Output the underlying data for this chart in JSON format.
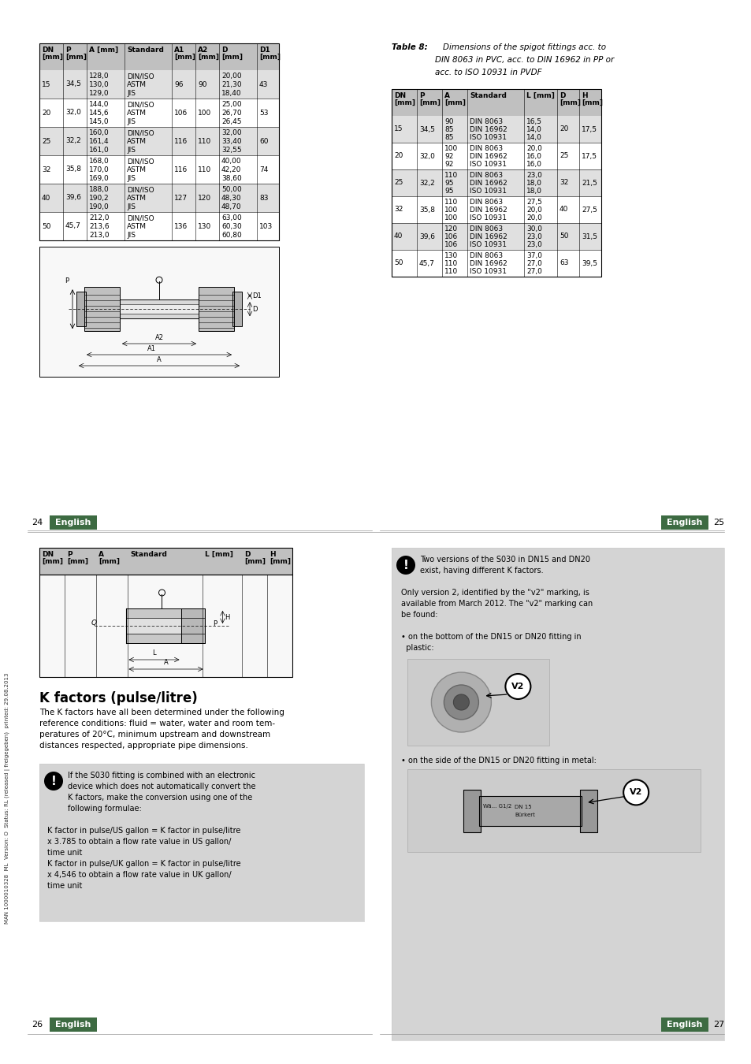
{
  "bg_color": "#ffffff",
  "header_gray": "#c0c0c0",
  "light_gray": "#e0e0e0",
  "footer_green": "#3d6b42",
  "note_bg": "#d4d4d4",
  "sidebar_text": "MAN 1000010328  ML  Version: O  Status: RL (released | freigegeben)  printed: 29.08.2013",
  "table1_headers_row1": [
    "DN",
    "P",
    "A [mm]",
    "Standard",
    "A1",
    "A2",
    "D",
    "D1"
  ],
  "table1_headers_row2": [
    "[mm]",
    "[mm]",
    "",
    "",
    "[mm]",
    "[mm]",
    "[mm]",
    "[mm]"
  ],
  "table1_rows": [
    [
      "15",
      "34,5",
      "128,0\n130,0\n129,0",
      "DIN/ISO\nASTM\nJIS",
      "96",
      "90",
      "20,00\n21,30\n18,40",
      "43"
    ],
    [
      "20",
      "32,0",
      "144,0\n145,6\n145,0",
      "DIN/ISO\nASTM\nJIS",
      "106",
      "100",
      "25,00\n26,70\n26,45",
      "53"
    ],
    [
      "25",
      "32,2",
      "160,0\n161,4\n161,0",
      "DIN/ISO\nASTM\nJIS",
      "116",
      "110",
      "32,00\n33,40\n32,55",
      "60"
    ],
    [
      "32",
      "35,8",
      "168,0\n170,0\n169,0",
      "DIN/ISO\nASTM\nJIS",
      "116",
      "110",
      "40,00\n42,20\n38,60",
      "74"
    ],
    [
      "40",
      "39,6",
      "188,0\n190,2\n190,0",
      "DIN/ISO\nASTM\nJIS",
      "127",
      "120",
      "50,00\n48,30\n48,70",
      "83"
    ],
    [
      "50",
      "45,7",
      "212,0\n213,6\n213,0",
      "DIN/ISO\nASTM\nJIS",
      "136",
      "130",
      "63,00\n60,30\n60,80",
      "103"
    ]
  ],
  "table1_col_widths": [
    30,
    30,
    48,
    60,
    30,
    30,
    48,
    28
  ],
  "table2_caption_bold": "Table 8:",
  "table2_caption_rest": [
    "Dimensions of the spigot fittings acc. to",
    "DIN 8063 in PVC, acc. to DIN 16962 in PP or",
    "acc. to ISO 10931 in PVDF"
  ],
  "table2_headers_row1": [
    "DN",
    "P",
    "A",
    "Standard",
    "L [mm]",
    "D",
    "H"
  ],
  "table2_headers_row2": [
    "[mm]",
    "[mm]",
    "[mm]",
    "",
    "",
    "[mm]",
    "[mm]"
  ],
  "table2_rows": [
    [
      "15",
      "34,5",
      "90\n85\n85",
      "DIN 8063\nDIN 16962\nISO 10931",
      "16,5\n14,0\n14,0",
      "20",
      "17,5"
    ],
    [
      "20",
      "32,0",
      "100\n92\n92",
      "DIN 8063\nDIN 16962\nISO 10931",
      "20,0\n16,0\n16,0",
      "25",
      "17,5"
    ],
    [
      "25",
      "32,2",
      "110\n95\n95",
      "DIN 8063\nDIN 16962\nISO 10931",
      "23,0\n18,0\n18,0",
      "32",
      "21,5"
    ],
    [
      "32",
      "35,8",
      "110\n100\n100",
      "DIN 8063\nDIN 16962\nISO 10931",
      "27,5\n20,0\n20,0",
      "40",
      "27,5"
    ],
    [
      "40",
      "39,6",
      "120\n106\n106",
      "DIN 8063\nDIN 16962\nISO 10931",
      "30,0\n23,0\n23,0",
      "50",
      "31,5"
    ],
    [
      "50",
      "45,7",
      "130\n110\n110",
      "DIN 8063\nDIN 16962\nISO 10931",
      "37,0\n27,0\n27,0",
      "63",
      "39,5"
    ]
  ],
  "table2_col_widths": [
    32,
    32,
    32,
    72,
    42,
    28,
    28
  ],
  "table3_headers_row1": [
    "DN",
    "P",
    "A",
    "Standard",
    "L [mm]",
    "D",
    "H"
  ],
  "table3_headers_row2": [
    "[mm]",
    "[mm]",
    "[mm]",
    "",
    "",
    "[mm]",
    "[mm]"
  ],
  "table3_col_widths": [
    32,
    40,
    40,
    95,
    50,
    32,
    32
  ],
  "section_title": "K factors (pulse/litre)",
  "section_body": [
    "The K factors have all been determined under the following",
    "reference conditions: fluid = water, water and room tem-",
    "peratures of 20°C, minimum upstream and downstream",
    "distances respected, appropriate pipe dimensions."
  ],
  "note1_lines": [
    "If the S030 fitting is combined with an electronic",
    "device which does not automatically convert the",
    "K factors, make the conversion using one of the",
    "following formulae:",
    "",
    "K factor in pulse/US gallon = K factor in pulse/litre",
    "x 3.785 to obtain a flow rate value in US gallon/",
    "time unit",
    "K factor in pulse/UK gallon = K factor in pulse/litre",
    "x 4,546 to obtain a flow rate value in UK gallon/",
    "time unit"
  ],
  "note2_lines": [
    "Two versions of the S030 in DN15 and DN20",
    "exist, having different K factors.",
    "",
    "Only version 2, identified by the \"v2\" marking, is",
    "available from March 2012. The \"v2\" marking can",
    "be found:",
    "",
    "• on the bottom of the DN15 or DN20 fitting in",
    "  plastic:"
  ],
  "note2_bullet2": "• on the side of the DN15 or DN20 fitting in metal:",
  "page_nums": [
    "24",
    "25",
    "26",
    "27"
  ],
  "footer_label": "English"
}
